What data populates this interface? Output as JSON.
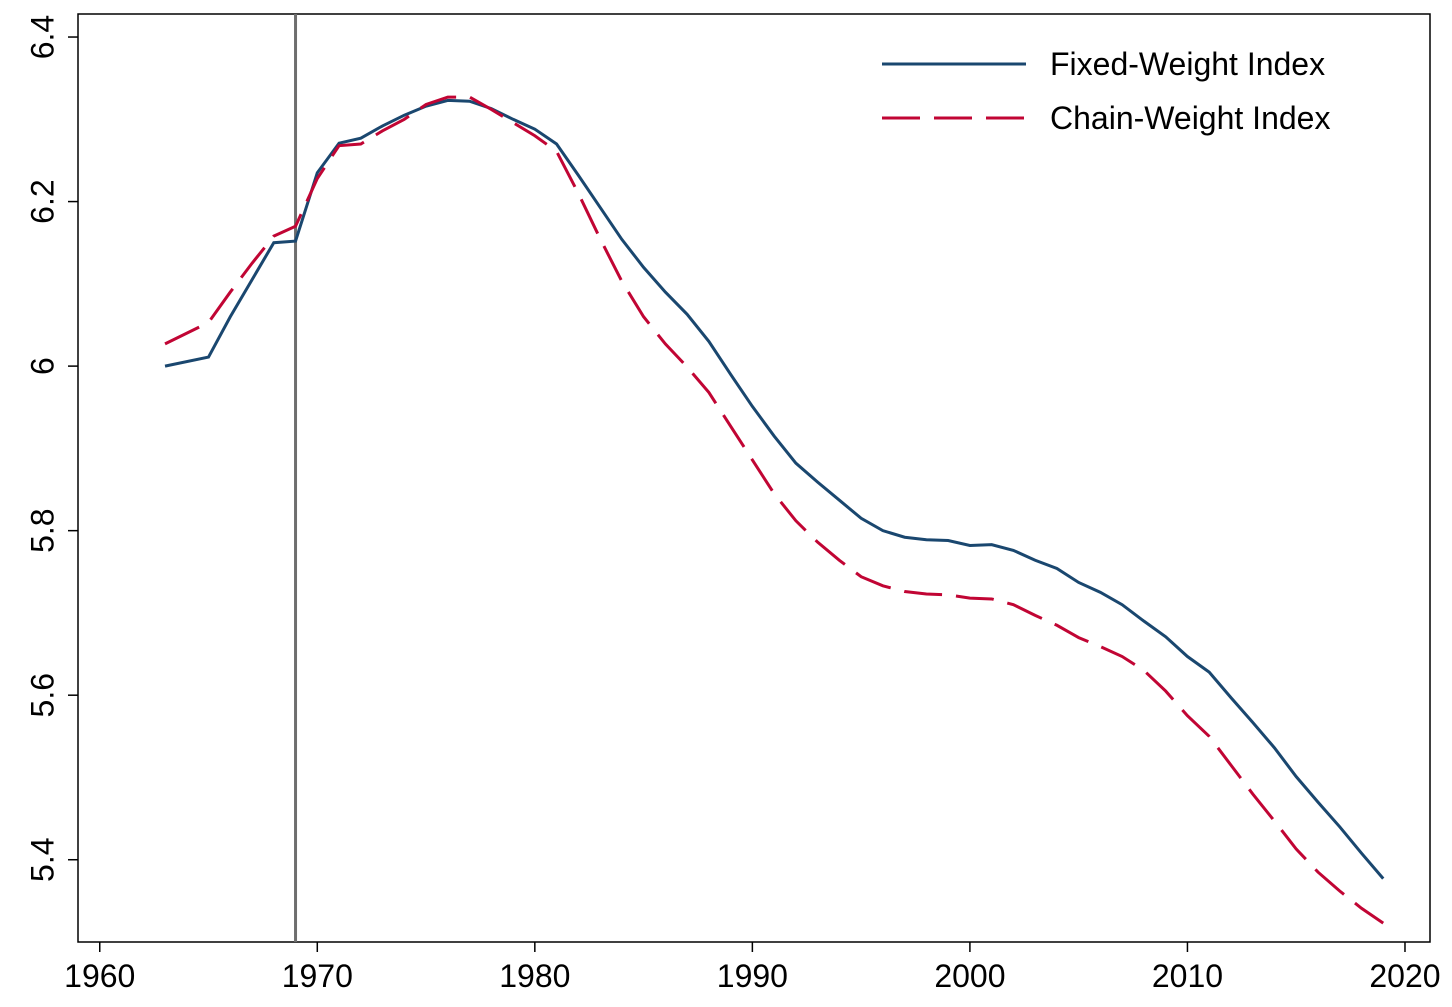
{
  "chart_data": {
    "type": "line",
    "x": [
      1963,
      1965,
      1966,
      1967,
      1968,
      1969,
      1970,
      1971,
      1972,
      1973,
      1974,
      1975,
      1976,
      1977,
      1978,
      1979,
      1980,
      1981,
      1982,
      1983,
      1984,
      1985,
      1986,
      1987,
      1988,
      1989,
      1990,
      1991,
      1992,
      1993,
      1994,
      1995,
      1996,
      1997,
      1998,
      1999,
      2000,
      2001,
      2002,
      2003,
      2004,
      2005,
      2006,
      2007,
      2008,
      2009,
      2010,
      2011,
      2012,
      2013,
      2014,
      2015,
      2016,
      2017,
      2018,
      2019
    ],
    "series": [
      {
        "name": "Fixed-Weight Index",
        "color": "#1a476f",
        "dash": "solid",
        "values": [
          6.0,
          6.011,
          6.06,
          6.105,
          6.15,
          6.152,
          6.235,
          6.271,
          6.277,
          6.292,
          6.305,
          6.316,
          6.323,
          6.322,
          6.313,
          6.3,
          6.288,
          6.27,
          6.232,
          6.193,
          6.154,
          6.12,
          6.09,
          6.063,
          6.03,
          5.99,
          5.951,
          5.915,
          5.882,
          5.859,
          5.837,
          5.815,
          5.8,
          5.792,
          5.789,
          5.788,
          5.782,
          5.783,
          5.776,
          5.764,
          5.754,
          5.737,
          5.725,
          5.71,
          5.69,
          5.671,
          5.647,
          5.628,
          5.597,
          5.567,
          5.536,
          5.501,
          5.47,
          5.44,
          5.408,
          5.377
        ]
      },
      {
        "name": "Chain-Weight Index",
        "color": "#c10534",
        "dash": "dashed",
        "values": [
          6.027,
          6.053,
          6.09,
          6.125,
          6.158,
          6.17,
          6.228,
          6.268,
          6.27,
          6.286,
          6.3,
          6.318,
          6.327,
          6.327,
          6.312,
          6.296,
          6.28,
          6.261,
          6.21,
          6.155,
          6.103,
          6.06,
          6.027,
          5.999,
          5.968,
          5.927,
          5.886,
          5.845,
          5.812,
          5.786,
          5.764,
          5.744,
          5.733,
          5.726,
          5.723,
          5.722,
          5.718,
          5.717,
          5.71,
          5.697,
          5.685,
          5.67,
          5.659,
          5.647,
          5.63,
          5.605,
          5.575,
          5.55,
          5.515,
          5.48,
          5.447,
          5.413,
          5.385,
          5.362,
          5.341,
          5.323
        ]
      }
    ],
    "xlim": [
      1959,
      2021.15
    ],
    "xticks": [
      1960,
      1970,
      1980,
      1990,
      2000,
      2010,
      2020
    ],
    "ylim": [
      5.3,
      6.428
    ],
    "yticks": [
      5.4,
      5.6,
      5.8,
      6,
      6.2,
      6.4
    ],
    "reference_line_x": 1969,
    "reference_line_color": "#6e6e6e",
    "legend": "top-right"
  }
}
